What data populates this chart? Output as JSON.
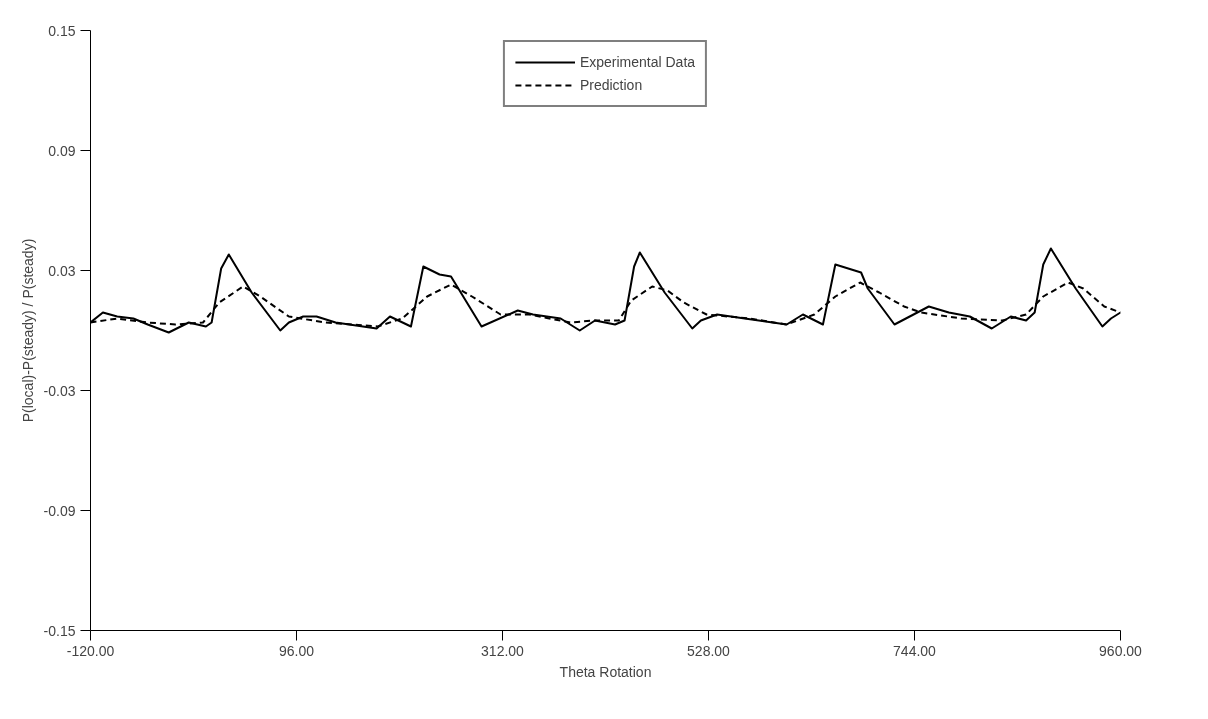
{
  "chart_data": {
    "type": "line",
    "xlabel": "Theta Rotation",
    "ylabel": "P(local)-P(steady) / P(steady)",
    "xlim": [
      -120,
      960
    ],
    "ylim": [
      -0.15,
      0.15
    ],
    "xticks": [
      {
        "value": -120,
        "label": "-120.00"
      },
      {
        "value": 96,
        "label": "96.00"
      },
      {
        "value": 312,
        "label": "312.00"
      },
      {
        "value": 528,
        "label": "528.00"
      },
      {
        "value": 744,
        "label": "744.00"
      },
      {
        "value": 960,
        "label": "960.00"
      }
    ],
    "yticks": [
      -0.15,
      -0.09,
      -0.03,
      0.03,
      0.09,
      0.15
    ],
    "grid": false,
    "legend": "top",
    "marker": "none",
    "series": [
      {
        "name": "Experimental Data",
        "color": "#000000",
        "line_style": "solid",
        "x": [
          -120,
          -107,
          -92,
          -75,
          -60,
          -38,
          -17,
          1,
          7,
          17,
          25,
          49,
          79,
          88,
          103,
          117,
          137,
          180,
          194,
          216,
          229,
          246,
          258,
          290,
          328,
          344,
          373,
          393,
          409,
          430,
          440,
          450,
          456,
          482,
          511,
          520,
          537,
          566,
          610,
          627,
          648,
          661,
          688,
          695,
          723,
          759,
          780,
          802,
          825,
          845,
          861,
          870,
          879,
          887,
          913,
          941,
          950,
          960
        ],
        "values": [
          0.004,
          0.009,
          0.007,
          0.006,
          0.003,
          -0.001,
          0.004,
          0.002,
          0.004,
          0.031,
          0.038,
          0.019,
          0.0,
          0.004,
          0.007,
          0.007,
          0.004,
          0.001,
          0.007,
          0.002,
          0.032,
          0.028,
          0.027,
          0.002,
          0.01,
          0.008,
          0.006,
          0.0,
          0.005,
          0.003,
          0.005,
          0.032,
          0.039,
          0.019,
          0.001,
          0.005,
          0.008,
          0.006,
          0.003,
          0.008,
          0.003,
          0.033,
          0.029,
          0.021,
          0.003,
          0.012,
          0.009,
          0.007,
          0.001,
          0.007,
          0.005,
          0.009,
          0.033,
          0.041,
          0.021,
          0.002,
          0.006,
          0.009
        ]
      },
      {
        "name": "Prediction",
        "color": "#000000",
        "line_style": "dashed",
        "x": [
          -120,
          -92,
          -60,
          -31,
          -2,
          15,
          40,
          58,
          88,
          126,
          181,
          207,
          233,
          258,
          280,
          310,
          340,
          383,
          408,
          434,
          447,
          469,
          485,
          502,
          526,
          571,
          610,
          639,
          661,
          687,
          707,
          733,
          751,
          793,
          836,
          861,
          879,
          905,
          921,
          943,
          960
        ],
        "values": [
          0.004,
          0.006,
          0.004,
          0.003,
          0.004,
          0.014,
          0.022,
          0.017,
          0.007,
          0.004,
          0.002,
          0.006,
          0.017,
          0.023,
          0.017,
          0.008,
          0.008,
          0.004,
          0.005,
          0.005,
          0.015,
          0.022,
          0.02,
          0.014,
          0.008,
          0.006,
          0.003,
          0.008,
          0.017,
          0.024,
          0.019,
          0.012,
          0.009,
          0.006,
          0.005,
          0.008,
          0.017,
          0.024,
          0.021,
          0.012,
          0.009
        ]
      }
    ]
  }
}
